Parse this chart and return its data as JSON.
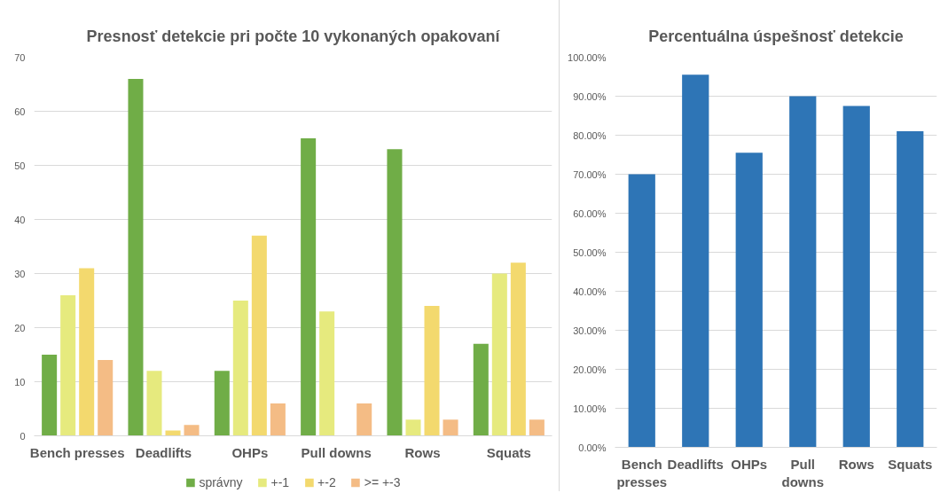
{
  "chart_data": [
    {
      "type": "bar",
      "title": "Presnosť detekcie pri počte 10 vykonaných opakovaní",
      "categories": [
        "Bench presses",
        "Deadlifts",
        "OHPs",
        "Pull downs",
        "Rows",
        "Squats"
      ],
      "series": [
        {
          "name": "správny",
          "color": "#70ad47",
          "values": [
            15,
            66,
            12,
            55,
            53,
            17
          ]
        },
        {
          "name": "+-1",
          "color": "#e6ea7e",
          "values": [
            26,
            12,
            25,
            23,
            3,
            30
          ]
        },
        {
          "name": "+-2",
          "color": "#f3d96e",
          "values": [
            31,
            1,
            37,
            0,
            24,
            32
          ]
        },
        {
          "name": ">= +-3",
          "color": "#f4bc85",
          "values": [
            14,
            2,
            6,
            6,
            3,
            3
          ]
        }
      ],
      "ylim": [
        0,
        70
      ],
      "yticks": [
        0,
        10,
        20,
        30,
        40,
        50,
        60,
        70
      ],
      "grid": "y",
      "legend": "bottom"
    },
    {
      "type": "bar",
      "title": "Percentuálna úspešnosť detekcie",
      "categories": [
        "Bench presses",
        "Deadlifts",
        "OHPs",
        "Pull downs",
        "Rows",
        "Squats"
      ],
      "values": [
        70,
        95.5,
        75.5,
        90,
        87.5,
        81
      ],
      "color": "#2e75b6",
      "ylim": [
        0,
        100
      ],
      "yticks": [
        {
          "value": 0,
          "label": "0.00%"
        },
        {
          "value": 10,
          "label": "10.00%"
        },
        {
          "value": 20,
          "label": "20.00%"
        },
        {
          "value": 30,
          "label": "30.00%"
        },
        {
          "value": 40,
          "label": "40.00%"
        },
        {
          "value": 50,
          "label": "50.00%"
        },
        {
          "value": 60,
          "label": "60.00%"
        },
        {
          "value": 70,
          "label": "70.00%"
        },
        {
          "value": 80,
          "label": "80.00%"
        },
        {
          "value": 90,
          "label": "90.00%"
        },
        {
          "value": 100,
          "label": "100.00%"
        }
      ],
      "grid": "y"
    }
  ]
}
